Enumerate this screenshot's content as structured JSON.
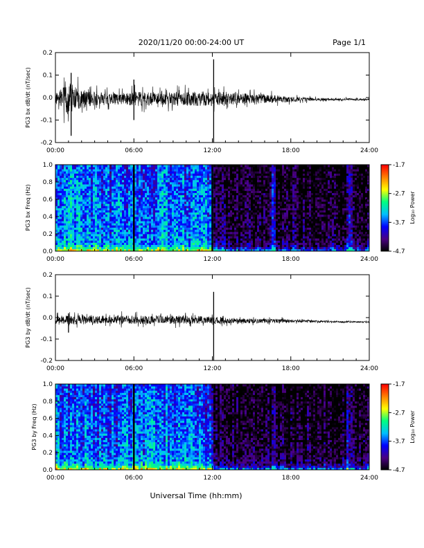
{
  "header": {
    "date_range": "2020/11/20  00:00-24:00 UT",
    "page": "Page 1/1"
  },
  "x_axis": {
    "title": "Universal Time (hh:mm)",
    "range_hours": [
      0,
      24
    ],
    "ticks": [
      "00:00",
      "06:00",
      "12:00",
      "18:00",
      "24:00"
    ]
  },
  "colorbar": {
    "label": "Log₁₀ Power",
    "ticks": [
      "-1.7",
      "-2.7",
      "-3.7",
      "-4.7"
    ],
    "range": [
      -4.7,
      -1.7
    ],
    "colors": [
      "#000000",
      "#4b0082",
      "#0000ff",
      "#00bfff",
      "#00ff80",
      "#ffff00",
      "#ff8000",
      "#ff0000"
    ]
  },
  "chart_data": [
    {
      "type": "line",
      "ylabel": "PG3 bx dB/dt (nT/sec)",
      "ylim": [
        -0.2,
        0.2
      ],
      "yticks": [
        "0.2",
        "0.1",
        "0.0",
        "-0.1",
        "-0.2"
      ],
      "x_hours": [
        0,
        1,
        1.5,
        2,
        3,
        4,
        5,
        6,
        8,
        10,
        12,
        12.2,
        14,
        16,
        18,
        20,
        22,
        24
      ],
      "amplitude": [
        0.03,
        0.09,
        0.07,
        0.05,
        0.04,
        0.035,
        0.03,
        0.04,
        0.035,
        0.04,
        0.04,
        0.04,
        0.03,
        0.025,
        0.015,
        0.008,
        0.006,
        0.005
      ],
      "offset": [
        -0.005,
        -0.005,
        -0.005,
        -0.005,
        -0.005,
        -0.005,
        -0.005,
        -0.005,
        -0.005,
        -0.005,
        -0.005,
        -0.005,
        -0.005,
        -0.005,
        -0.008,
        -0.008,
        -0.008,
        -0.008
      ],
      "spikes": [
        {
          "hour": 1.2,
          "max": 0.11,
          "min": -0.17
        },
        {
          "hour": 6.0,
          "max": 0.08,
          "min": -0.1
        },
        {
          "hour": 12.1,
          "max": 0.17,
          "min": -0.2
        }
      ]
    },
    {
      "type": "heatmap",
      "ylabel": "PG3 bx Freq (Hz)",
      "ylim": [
        0.0,
        1.0
      ],
      "yticks": [
        "1.0",
        "0.8",
        "0.6",
        "0.4",
        "0.2",
        "0.0"
      ],
      "x_hours": [
        0,
        2,
        4,
        6,
        8,
        10,
        12,
        12.2,
        14,
        16,
        18,
        20,
        22,
        24
      ],
      "base_level": [
        -3.4,
        -3.5,
        -3.6,
        -3.5,
        -3.5,
        -3.5,
        -3.6,
        -4.4,
        -4.5,
        -4.5,
        -4.5,
        -4.55,
        -4.5,
        -4.55
      ],
      "low_freq_boost": 1.2,
      "data_gaps_hours": [
        6.0,
        12.0
      ],
      "bright_bands_hours": [
        16.7,
        22.5
      ]
    },
    {
      "type": "line",
      "ylabel": "PG3 by dB/dt (nT/sec)",
      "ylim": [
        -0.2,
        0.2
      ],
      "yticks": [
        "0.2",
        "0.1",
        "0.0",
        "-0.1",
        "-0.2"
      ],
      "x_hours": [
        0,
        1,
        2,
        3,
        4,
        5,
        6,
        8,
        10,
        12,
        12.2,
        14,
        16,
        18,
        20,
        22,
        24
      ],
      "amplitude": [
        0.02,
        0.03,
        0.025,
        0.025,
        0.02,
        0.025,
        0.025,
        0.025,
        0.025,
        0.02,
        0.02,
        0.015,
        0.012,
        0.01,
        0.006,
        0.004,
        0.004
      ],
      "offset": [
        -0.01,
        -0.01,
        -0.01,
        -0.01,
        -0.01,
        -0.01,
        -0.01,
        -0.01,
        -0.01,
        -0.012,
        -0.012,
        -0.015,
        -0.015,
        -0.015,
        -0.018,
        -0.02,
        -0.02
      ],
      "spikes": [
        {
          "hour": 1.0,
          "max": 0.02,
          "min": -0.07
        },
        {
          "hour": 12.1,
          "max": 0.12,
          "min": -0.2
        }
      ]
    },
    {
      "type": "heatmap",
      "ylabel": "PG3 by Freq (Hz)",
      "ylim": [
        0.0,
        1.0
      ],
      "yticks": [
        "1.0",
        "0.8",
        "0.6",
        "0.4",
        "0.2",
        "0.0"
      ],
      "x_hours": [
        0,
        2,
        4,
        6,
        8,
        10,
        12,
        12.2,
        14,
        16,
        18,
        20,
        22,
        24
      ],
      "base_level": [
        -3.5,
        -3.55,
        -3.6,
        -3.5,
        -3.5,
        -3.55,
        -3.7,
        -4.4,
        -4.5,
        -4.5,
        -4.5,
        -4.55,
        -4.5,
        -4.55
      ],
      "low_freq_boost": 1.3,
      "data_gaps_hours": [
        6.0
      ],
      "bright_bands_hours": [
        16.7,
        22.5
      ]
    }
  ]
}
